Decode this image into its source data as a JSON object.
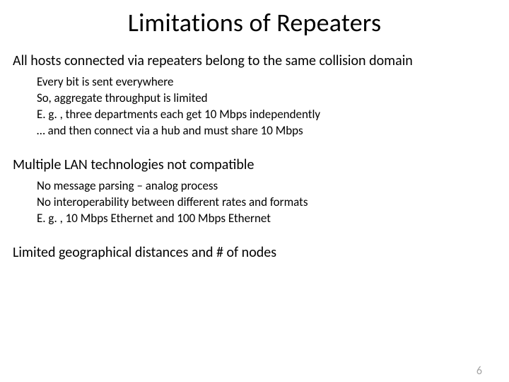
{
  "slide": {
    "title": "Limitations of Repeaters",
    "sections": [
      {
        "main": "All hosts connected via repeaters belong to the same collision domain",
        "subs": [
          "Every bit is sent everywhere",
          "So, aggregate throughput is limited",
          "E. g. , three departments each get 10 Mbps independently",
          "… and then connect via a hub and must share 10 Mbps"
        ]
      },
      {
        "main": "Multiple LAN technologies not compatible",
        "subs": [
          "No message parsing – analog process",
          "No interoperability between different rates and formats",
          "E. g. , 10 Mbps Ethernet and 100 Mbps Ethernet"
        ]
      },
      {
        "main": "Limited geographical distances and # of nodes",
        "subs": []
      }
    ],
    "page_number": "6"
  },
  "style": {
    "background_color": "#ffffff",
    "text_color": "#000000",
    "page_number_color": "#a6a6a6",
    "title_fontsize": 36,
    "main_fontsize": 20,
    "sub_fontsize": 17,
    "font_family": "Calibri"
  }
}
